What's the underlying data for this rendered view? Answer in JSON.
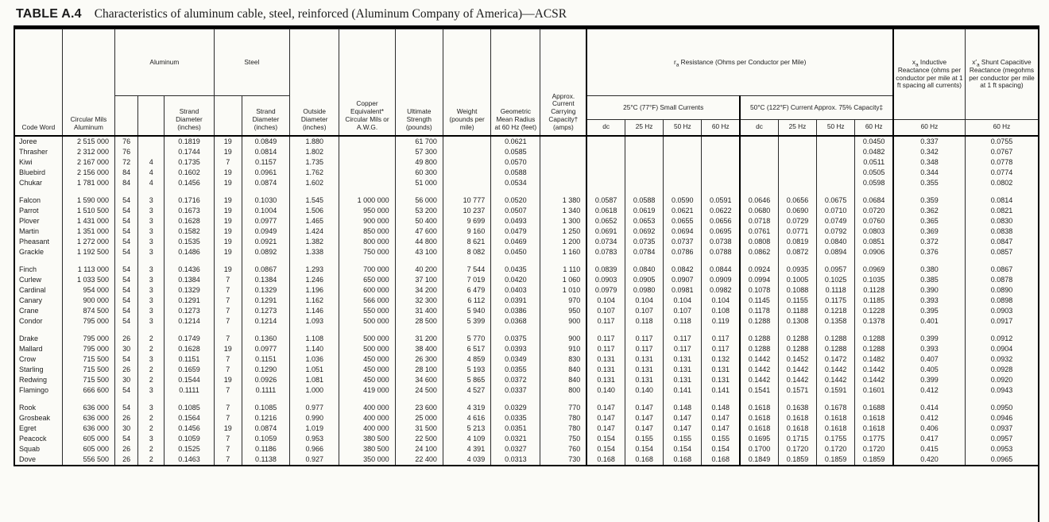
{
  "title": {
    "label": "TABLE A.4",
    "text": "Characteristics of aluminum cable, steel, reinforced (Aluminum Company of America)—ACSR"
  },
  "headers": {
    "code": "Code Word",
    "cmils": "Circular Mils Aluminum",
    "aluminum": "Aluminum",
    "steel": "Steel",
    "strand_dia": "Strand Diameter (inches)",
    "outside_dia": "Outside Diameter (inches)",
    "copper_eq": "Copper Equivalent* Circular Mils or A.W.G.",
    "strength": "Ultimate Strength (pounds)",
    "weight": "Weight (pounds per mile)",
    "gmr": "Geometric Mean Radius at 60 Hz (feet)",
    "amps": "Approx. Current Carrying Capacity† (amps)",
    "resistance": {
      "sym": "r",
      "sub": "a",
      "rest": " Resistance (Ohms per Conductor per Mile)"
    },
    "r25": "25°C (77°F) Small Currents",
    "r50": "50°C (122°F) Current Approx. 75% Capacity‡",
    "freq": [
      "dc",
      "25 Hz",
      "50 Hz",
      "60 Hz"
    ],
    "xa": {
      "sym": "x",
      "sub": "a",
      "rest": " Inductive Reactance (ohms per conductor per mile at 1 ft spacing all currents)"
    },
    "xc": {
      "sym": "x′",
      "sub": "a",
      "rest": " Shunt Capacitive Reactance (megohms per conductor per mile at 1 ft spacing)"
    },
    "hz60": "60 Hz"
  },
  "columns": [
    "code",
    "cmils",
    "al_strands",
    "al_layers",
    "al_strand_dia",
    "st_strands",
    "st_strand_dia",
    "outside_dia",
    "copper_eq",
    "strength",
    "weight",
    "gmr",
    "amps",
    "r25_dc",
    "r25_25hz",
    "r25_50hz",
    "r25_60hz",
    "r50_dc",
    "r50_25hz",
    "r50_50hz",
    "r50_60hz",
    "xa_60hz",
    "xc_60hz"
  ],
  "groups": [
    [
      [
        "Joree",
        "2 515 000",
        "76",
        "",
        "0.1819",
        "19",
        "0.0849",
        "1.880",
        "",
        "61 700",
        "",
        "0.0621",
        "",
        "",
        "",
        "",
        "",
        "",
        "",
        "",
        "0.0450",
        "0.337",
        "0.0755"
      ],
      [
        "Thrasher",
        "2 312 000",
        "76",
        "",
        "0.1744",
        "19",
        "0.0814",
        "1.802",
        "",
        "57 300",
        "",
        "0.0585",
        "",
        "",
        "",
        "",
        "",
        "",
        "",
        "",
        "0.0482",
        "0.342",
        "0.0767"
      ],
      [
        "Kiwi",
        "2 167 000",
        "72",
        "4",
        "0.1735",
        "7",
        "0.1157",
        "1.735",
        "",
        "49 800",
        "",
        "0.0570",
        "",
        "",
        "",
        "",
        "",
        "",
        "",
        "",
        "0.0511",
        "0.348",
        "0.0778"
      ],
      [
        "Bluebird",
        "2 156 000",
        "84",
        "4",
        "0.1602",
        "19",
        "0.0961",
        "1.762",
        "",
        "60 300",
        "",
        "0.0588",
        "",
        "",
        "",
        "",
        "",
        "",
        "",
        "",
        "0.0505",
        "0.344",
        "0.0774"
      ],
      [
        "Chukar",
        "1 781 000",
        "84",
        "4",
        "0.1456",
        "19",
        "0.0874",
        "1.602",
        "",
        "51 000",
        "",
        "0.0534",
        "",
        "",
        "",
        "",
        "",
        "",
        "",
        "",
        "0.0598",
        "0.355",
        "0.0802"
      ]
    ],
    [
      [
        "Falcon",
        "1 590 000",
        "54",
        "3",
        "0.1716",
        "19",
        "0.1030",
        "1.545",
        "1 000 000",
        "56 000",
        "10 777",
        "0.0520",
        "1 380",
        "0.0587",
        "0.0588",
        "0.0590",
        "0.0591",
        "0.0646",
        "0.0656",
        "0.0675",
        "0.0684",
        "0.359",
        "0.0814"
      ],
      [
        "Parrot",
        "1 510 500",
        "54",
        "3",
        "0.1673",
        "19",
        "0.1004",
        "1.506",
        "950 000",
        "53 200",
        "10 237",
        "0.0507",
        "1 340",
        "0.0618",
        "0.0619",
        "0.0621",
        "0.0622",
        "0.0680",
        "0.0690",
        "0.0710",
        "0.0720",
        "0.362",
        "0.0821"
      ],
      [
        "Plover",
        "1 431 000",
        "54",
        "3",
        "0.1628",
        "19",
        "0.0977",
        "1.465",
        "900 000",
        "50 400",
        "9 699",
        "0.0493",
        "1 300",
        "0.0652",
        "0.0653",
        "0.0655",
        "0.0656",
        "0.0718",
        "0.0729",
        "0.0749",
        "0.0760",
        "0.365",
        "0.0830"
      ],
      [
        "Martin",
        "1 351 000",
        "54",
        "3",
        "0.1582",
        "19",
        "0.0949",
        "1.424",
        "850 000",
        "47 600",
        "9 160",
        "0.0479",
        "1 250",
        "0.0691",
        "0.0692",
        "0.0694",
        "0.0695",
        "0.0761",
        "0.0771",
        "0.0792",
        "0.0803",
        "0.369",
        "0.0838"
      ],
      [
        "Pheasant",
        "1 272 000",
        "54",
        "3",
        "0.1535",
        "19",
        "0.0921",
        "1.382",
        "800 000",
        "44 800",
        "8 621",
        "0.0469",
        "1 200",
        "0.0734",
        "0.0735",
        "0.0737",
        "0.0738",
        "0.0808",
        "0.0819",
        "0.0840",
        "0.0851",
        "0.372",
        "0.0847"
      ],
      [
        "Grackle",
        "1 192 500",
        "54",
        "3",
        "0.1486",
        "19",
        "0.0892",
        "1.338",
        "750 000",
        "43 100",
        "8 082",
        "0.0450",
        "1 160",
        "0.0783",
        "0.0784",
        "0.0786",
        "0.0788",
        "0.0862",
        "0.0872",
        "0.0894",
        "0.0906",
        "0.376",
        "0.0857"
      ]
    ],
    [
      [
        "Finch",
        "1 113 000",
        "54",
        "3",
        "0.1436",
        "19",
        "0.0867",
        "1.293",
        "700 000",
        "40 200",
        "7 544",
        "0.0435",
        "1 110",
        "0.0839",
        "0.0840",
        "0.0842",
        "0.0844",
        "0.0924",
        "0.0935",
        "0.0957",
        "0.0969",
        "0.380",
        "0.0867"
      ],
      [
        "Curlew",
        "1 033 500",
        "54",
        "3",
        "0.1384",
        "7",
        "0.1384",
        "1.246",
        "650 000",
        "37 100",
        "7 019",
        "0.0420",
        "1 060",
        "0.0903",
        "0.0905",
        "0.0907",
        "0.0909",
        "0.0994",
        "0.1005",
        "0.1025",
        "0.1035",
        "0.385",
        "0.0878"
      ],
      [
        "Cardinal",
        "954 000",
        "54",
        "3",
        "0.1329",
        "7",
        "0.1329",
        "1.196",
        "600 000",
        "34 200",
        "6 479",
        "0.0403",
        "1 010",
        "0.0979",
        "0.0980",
        "0.0981",
        "0.0982",
        "0.1078",
        "0.1088",
        "0.1118",
        "0.1128",
        "0.390",
        "0.0890"
      ],
      [
        "Canary",
        "900 000",
        "54",
        "3",
        "0.1291",
        "7",
        "0.1291",
        "1.162",
        "566 000",
        "32 300",
        "6 112",
        "0.0391",
        "970",
        "0.104",
        "0.104",
        "0.104",
        "0.104",
        "0.1145",
        "0.1155",
        "0.1175",
        "0.1185",
        "0.393",
        "0.0898"
      ],
      [
        "Crane",
        "874 500",
        "54",
        "3",
        "0.1273",
        "7",
        "0.1273",
        "1.146",
        "550 000",
        "31 400",
        "5 940",
        "0.0386",
        "950",
        "0.107",
        "0.107",
        "0.107",
        "0.108",
        "0.1178",
        "0.1188",
        "0.1218",
        "0.1228",
        "0.395",
        "0.0903"
      ],
      [
        "Condor",
        "795 000",
        "54",
        "3",
        "0.1214",
        "7",
        "0.1214",
        "1.093",
        "500 000",
        "28 500",
        "5 399",
        "0.0368",
        "900",
        "0.117",
        "0.118",
        "0.118",
        "0.119",
        "0.1288",
        "0.1308",
        "0.1358",
        "0.1378",
        "0.401",
        "0.0917"
      ]
    ],
    [
      [
        "Drake",
        "795 000",
        "26",
        "2",
        "0.1749",
        "7",
        "0.1360",
        "1.108",
        "500 000",
        "31 200",
        "5 770",
        "0.0375",
        "900",
        "0.117",
        "0.117",
        "0.117",
        "0.117",
        "0.1288",
        "0.1288",
        "0.1288",
        "0.1288",
        "0.399",
        "0.0912"
      ],
      [
        "Mallard",
        "795 000",
        "30",
        "2",
        "0.1628",
        "19",
        "0.0977",
        "1.140",
        "500 000",
        "38 400",
        "6 517",
        "0.0393",
        "910",
        "0.117",
        "0.117",
        "0.117",
        "0.117",
        "0.1288",
        "0.1288",
        "0.1288",
        "0.1288",
        "0.393",
        "0.0904"
      ],
      [
        "Crow",
        "715 500",
        "54",
        "3",
        "0.1151",
        "7",
        "0.1151",
        "1.036",
        "450 000",
        "26 300",
        "4 859",
        "0.0349",
        "830",
        "0.131",
        "0.131",
        "0.131",
        "0.132",
        "0.1442",
        "0.1452",
        "0.1472",
        "0.1482",
        "0.407",
        "0.0932"
      ],
      [
        "Starling",
        "715 500",
        "26",
        "2",
        "0.1659",
        "7",
        "0.1290",
        "1.051",
        "450 000",
        "28 100",
        "5 193",
        "0.0355",
        "840",
        "0.131",
        "0.131",
        "0.131",
        "0.131",
        "0.1442",
        "0.1442",
        "0.1442",
        "0.1442",
        "0.405",
        "0.0928"
      ],
      [
        "Redwing",
        "715 500",
        "30",
        "2",
        "0.1544",
        "19",
        "0.0926",
        "1.081",
        "450 000",
        "34 600",
        "5 865",
        "0.0372",
        "840",
        "0.131",
        "0.131",
        "0.131",
        "0.131",
        "0.1442",
        "0.1442",
        "0.1442",
        "0.1442",
        "0.399",
        "0.0920"
      ],
      [
        "Flamingo",
        "666 600",
        "54",
        "3",
        "0.1111",
        "7",
        "0.1111",
        "1.000",
        "419 000",
        "24 500",
        "4 527",
        "0.0337",
        "800",
        "0.140",
        "0.140",
        "0.141",
        "0.141",
        "0.1541",
        "0.1571",
        "0.1591",
        "0.1601",
        "0.412",
        "0.0943"
      ]
    ],
    [
      [
        "Rook",
        "636 000",
        "54",
        "3",
        "0.1085",
        "7",
        "0.1085",
        "0.977",
        "400 000",
        "23 600",
        "4 319",
        "0.0329",
        "770",
        "0.147",
        "0.147",
        "0.148",
        "0.148",
        "0.1618",
        "0.1638",
        "0.1678",
        "0.1688",
        "0.414",
        "0.0950"
      ],
      [
        "Grosbeak",
        "636 000",
        "26",
        "2",
        "0.1564",
        "7",
        "0.1216",
        "0.990",
        "400 000",
        "25 000",
        "4 616",
        "0.0335",
        "780",
        "0.147",
        "0.147",
        "0.147",
        "0.147",
        "0.1618",
        "0.1618",
        "0.1618",
        "0.1618",
        "0.412",
        "0.0946"
      ],
      [
        "Egret",
        "636 000",
        "30",
        "2",
        "0.1456",
        "19",
        "0.0874",
        "1.019",
        "400 000",
        "31 500",
        "5 213",
        "0.0351",
        "780",
        "0.147",
        "0.147",
        "0.147",
        "0.147",
        "0.1618",
        "0.1618",
        "0.1618",
        "0.1618",
        "0.406",
        "0.0937"
      ],
      [
        "Peacock",
        "605 000",
        "54",
        "3",
        "0.1059",
        "7",
        "0.1059",
        "0.953",
        "380 500",
        "22 500",
        "4 109",
        "0.0321",
        "750",
        "0.154",
        "0.155",
        "0.155",
        "0.155",
        "0.1695",
        "0.1715",
        "0.1755",
        "0.1775",
        "0.417",
        "0.0957"
      ],
      [
        "Squab",
        "605 000",
        "26",
        "2",
        "0.1525",
        "7",
        "0.1186",
        "0.966",
        "380 500",
        "24 100",
        "4 391",
        "0.0327",
        "760",
        "0.154",
        "0.154",
        "0.154",
        "0.154",
        "0.1700",
        "0.1720",
        "0.1720",
        "0.1720",
        "0.415",
        "0.0953"
      ],
      [
        "Dove",
        "556 500",
        "26",
        "2",
        "0.1463",
        "7",
        "0.1138",
        "0.927",
        "350 000",
        "22 400",
        "4 039",
        "0.0313",
        "730",
        "0.168",
        "0.168",
        "0.168",
        "0.168",
        "0.1849",
        "0.1859",
        "0.1859",
        "0.1859",
        "0.420",
        "0.0965"
      ]
    ]
  ]
}
